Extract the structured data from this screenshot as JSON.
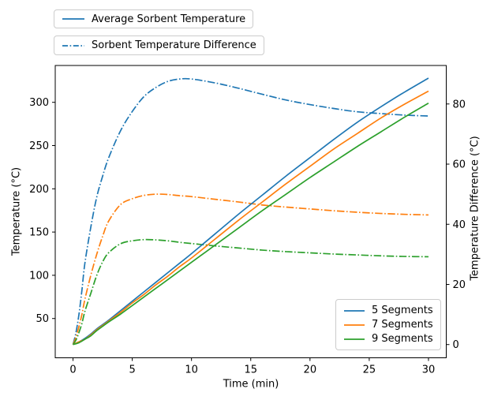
{
  "figure": {
    "background": "#ffffff",
    "legend_top": [
      {
        "label": "Average Sorbent Temperature",
        "color": "#1f77b4",
        "style": "solid"
      },
      {
        "label": "Sorbent Temperature Difference",
        "color": "#1f77b4",
        "style": "dashdot"
      }
    ],
    "legend_segments": [
      {
        "label": "5 Segments",
        "color": "#1f77b4",
        "style": "solid"
      },
      {
        "label": "7 Segments",
        "color": "#ff7f0e",
        "style": "solid"
      },
      {
        "label": "9 Segments",
        "color": "#2ca02c",
        "style": "solid"
      }
    ]
  },
  "chart_data": {
    "type": "line",
    "title": "",
    "xlabel": "Time (min)",
    "ylabel_left": "Temperature (°C)",
    "ylabel_right": "Temperature Difference (°C)",
    "x_ticks": [
      0,
      5,
      10,
      15,
      20,
      25,
      30
    ],
    "y_left_ticks": [
      50,
      100,
      150,
      200,
      250,
      300
    ],
    "y_right_ticks": [
      0,
      20,
      40,
      60,
      80
    ],
    "xlim": [
      -1.5,
      31.5
    ],
    "ylim_left": [
      4.6,
      342.6
    ],
    "ylim_right": [
      -4.4,
      92.8
    ],
    "grid": false,
    "axis_color": "#000000",
    "legend_top_position": "above-axes-upper-left",
    "legend_segments_position": "lower-right",
    "series": [
      {
        "name": "Average Sorbent Temperature - 5 Segments",
        "axis": "left",
        "style": "solid",
        "color": "#1f77b4",
        "x": [
          0,
          0.5,
          1,
          1.5,
          2,
          2.5,
          3,
          4,
          5,
          6,
          7,
          8,
          9,
          10,
          12,
          14,
          16,
          18,
          20,
          22,
          24,
          26,
          28,
          30
        ],
        "y": [
          20,
          23,
          27,
          32,
          38,
          43,
          48,
          59,
          70,
          81,
          92,
          103,
          114,
          125,
          148,
          171,
          193,
          215,
          236,
          257,
          277,
          295,
          312,
          328
        ]
      },
      {
        "name": "Average Sorbent Temperature - 7 Segments",
        "axis": "left",
        "style": "solid",
        "color": "#ff7f0e",
        "x": [
          0,
          0.5,
          1,
          1.5,
          2,
          2.5,
          3,
          4,
          5,
          6,
          7,
          8,
          9,
          10,
          12,
          14,
          16,
          18,
          20,
          22,
          24,
          26,
          28,
          30
        ],
        "y": [
          20,
          23,
          26,
          31,
          37,
          42,
          47,
          57,
          68,
          78,
          89,
          99,
          110,
          120,
          142,
          164,
          185,
          206,
          226,
          246,
          264,
          282,
          298,
          313
        ]
      },
      {
        "name": "Average Sorbent Temperature - 9 Segments",
        "axis": "left",
        "style": "solid",
        "color": "#2ca02c",
        "x": [
          0,
          0.5,
          1,
          1.5,
          2,
          2.5,
          3,
          4,
          5,
          6,
          7,
          8,
          9,
          10,
          12,
          14,
          16,
          18,
          20,
          22,
          24,
          26,
          28,
          30
        ],
        "y": [
          20,
          22,
          26,
          30,
          36,
          41,
          46,
          55,
          65,
          75,
          85,
          95,
          105,
          115,
          135,
          155,
          175,
          194,
          213,
          231,
          249,
          266,
          283,
          299
        ]
      },
      {
        "name": "Sorbent Temperature Difference - 5 Segments",
        "axis": "right",
        "style": "dashdot",
        "color": "#1f77b4",
        "x": [
          0,
          0.25,
          0.5,
          0.75,
          1,
          1.5,
          2,
          2.5,
          3,
          4,
          5,
          6,
          7,
          8,
          9,
          10,
          12,
          14,
          16,
          18,
          20,
          22,
          24,
          26,
          28,
          30
        ],
        "y": [
          0,
          4,
          10,
          18,
          27,
          39,
          49,
          56,
          62,
          71,
          77.5,
          82.5,
          85.5,
          87.5,
          88.3,
          88.3,
          87,
          85.2,
          83.2,
          81.3,
          79.8,
          78.5,
          77.4,
          76.8,
          76.3,
          76
        ]
      },
      {
        "name": "Sorbent Temperature Difference - 7 Segments",
        "axis": "right",
        "style": "dashdot",
        "color": "#ff7f0e",
        "x": [
          0,
          0.25,
          0.5,
          0.75,
          1,
          1.5,
          2,
          2.5,
          3,
          4,
          5,
          6,
          7,
          8,
          9,
          10,
          12,
          14,
          16,
          18,
          20,
          22,
          24,
          26,
          28,
          30
        ],
        "y": [
          0,
          2.5,
          6,
          10,
          15,
          23,
          30,
          36,
          41,
          46.5,
          48.5,
          49.6,
          50,
          49.9,
          49.5,
          49.2,
          48.3,
          47.4,
          46.4,
          45.7,
          45.1,
          44.5,
          44,
          43.6,
          43.3,
          43.1
        ]
      },
      {
        "name": "Sorbent Temperature Difference - 9 Segments",
        "axis": "right",
        "style": "dashdot",
        "color": "#2ca02c",
        "x": [
          0,
          0.25,
          0.5,
          0.75,
          1,
          1.5,
          2,
          2.5,
          3,
          4,
          5,
          6,
          7,
          8,
          9,
          10,
          12,
          14,
          16,
          18,
          20,
          22,
          24,
          26,
          28,
          30
        ],
        "y": [
          0,
          1.5,
          4,
          7,
          11,
          17,
          23,
          27.5,
          30.5,
          33.5,
          34.5,
          34.9,
          34.8,
          34.5,
          34,
          33.6,
          32.8,
          32.1,
          31.4,
          30.9,
          30.5,
          30.1,
          29.8,
          29.5,
          29.3,
          29.2
        ]
      }
    ]
  }
}
